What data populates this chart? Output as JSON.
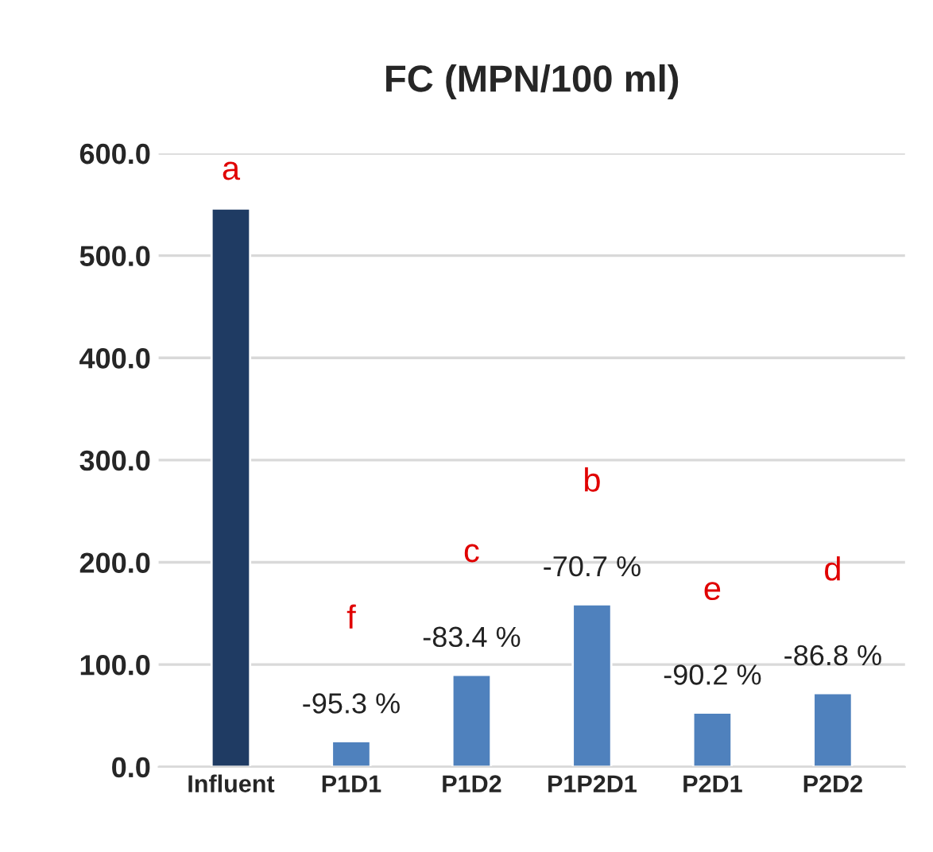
{
  "chart_data": {
    "type": "bar",
    "title": "FC (MPN/100 ml)",
    "categories": [
      "Influent",
      "P1D1",
      "P1D2",
      "P1P2D1",
      "P2D1",
      "P2D2"
    ],
    "values": [
      546,
      25,
      90,
      159,
      53,
      72
    ],
    "colors": [
      "#1f3b63",
      "#4f81bd",
      "#4f81bd",
      "#4f81bd",
      "#4f81bd",
      "#4f81bd"
    ],
    "annotations": [
      "a",
      "-95.3 %",
      "f",
      "-83.4 %",
      "c",
      "-70.7 %",
      "b",
      "-90.2 %",
      "e",
      "-86.8 %",
      "d"
    ],
    "ylim": [
      0,
      600
    ],
    "yticks": [
      {
        "value": 0,
        "label": "0.0"
      },
      {
        "value": 100,
        "label": "100.0"
      },
      {
        "value": 200,
        "label": "200.0"
      },
      {
        "value": 300,
        "label": "300.0"
      },
      {
        "value": 400,
        "label": "400.0"
      },
      {
        "value": 500,
        "label": "500.0"
      },
      {
        "value": 600,
        "label": "600.0"
      }
    ],
    "grid": "y",
    "legend": false
  }
}
